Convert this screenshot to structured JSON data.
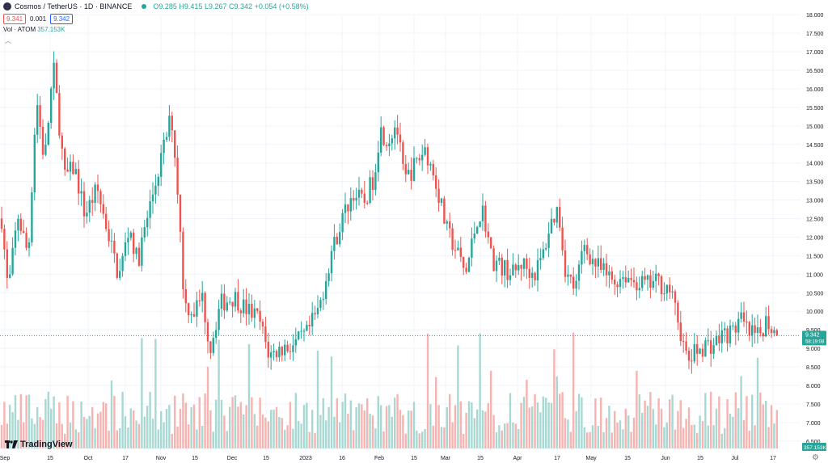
{
  "header": {
    "symbol": "Cosmos / TetherUS · 1D · BINANCE",
    "open": "O9.285",
    "high": "H9.415",
    "low": "L9.267",
    "close": "C9.342",
    "change": "+0.054 (+0.58%)",
    "sell_price": "9.341",
    "spread": "0.001",
    "buy_price": "9.342",
    "volume_label": "Vol · ATOM",
    "volume_value": "357.153K"
  },
  "last_price": {
    "price": "9.342",
    "countdown": "58:19:08",
    "volume": "357.153K"
  },
  "branding": {
    "logo_text": "TradingView"
  },
  "colors": {
    "up": "#26a69a",
    "down": "#ef5350",
    "up_vol": "#a8d8d2",
    "down_vol": "#f5b3b1",
    "grid": "#f0f3fa",
    "axis_text": "#131722"
  },
  "chart_data": {
    "type": "candlestick",
    "ylim": [
      6.3,
      18.2
    ],
    "ytick_labels": [
      "6.500",
      "7.000",
      "7.500",
      "8.000",
      "8.500",
      "9.000",
      "9.500",
      "10.000",
      "10.500",
      "11.000",
      "11.500",
      "12.000",
      "12.500",
      "13.000",
      "13.500",
      "14.000",
      "14.500",
      "15.000",
      "15.500",
      "16.000",
      "16.500",
      "17.000",
      "17.500",
      "18.000"
    ],
    "xtick_labels": [
      "Sep",
      "15",
      "Oct",
      "17",
      "Nov",
      "15",
      "Dec",
      "15",
      "2023",
      "16",
      "Feb",
      "15",
      "Mar",
      "15",
      "Apr",
      "17",
      "May",
      "15",
      "Jun",
      "15",
      "Jul",
      "17"
    ],
    "current_price": 9.342,
    "anchors": [
      [
        0,
        13.0
      ],
      [
        10,
        10.5
      ],
      [
        22,
        12.6
      ],
      [
        35,
        11.5
      ],
      [
        45,
        15.8
      ],
      [
        55,
        14.0
      ],
      [
        66,
        16.6
      ],
      [
        80,
        13.6
      ],
      [
        92,
        13.9
      ],
      [
        105,
        12.6
      ],
      [
        120,
        13.3
      ],
      [
        135,
        12.0
      ],
      [
        147,
        10.9
      ],
      [
        160,
        12.3
      ],
      [
        170,
        11.3
      ],
      [
        183,
        12.6
      ],
      [
        197,
        13.9
      ],
      [
        212,
        15.3
      ],
      [
        220,
        13.2
      ],
      [
        228,
        10.2
      ],
      [
        240,
        10.0
      ],
      [
        250,
        10.4
      ],
      [
        260,
        9.0
      ],
      [
        272,
        10.2
      ],
      [
        290,
        10.4
      ],
      [
        302,
        10.1
      ],
      [
        320,
        9.8
      ],
      [
        333,
        8.8
      ],
      [
        348,
        9.0
      ],
      [
        365,
        9.1
      ],
      [
        380,
        9.4
      ],
      [
        395,
        10.1
      ],
      [
        410,
        11.6
      ],
      [
        425,
        12.6
      ],
      [
        437,
        13.2
      ],
      [
        450,
        12.9
      ],
      [
        462,
        13.6
      ],
      [
        470,
        14.9
      ],
      [
        480,
        14.6
      ],
      [
        490,
        15.1
      ],
      [
        500,
        13.5
      ],
      [
        512,
        13.9
      ],
      [
        526,
        14.4
      ],
      [
        540,
        13.4
      ],
      [
        552,
        12.2
      ],
      [
        565,
        11.6
      ],
      [
        576,
        11.0
      ],
      [
        590,
        12.5
      ],
      [
        598,
        12.7
      ],
      [
        608,
        11.4
      ],
      [
        620,
        11.2
      ],
      [
        635,
        11.0
      ],
      [
        645,
        11.3
      ],
      [
        660,
        11.0
      ],
      [
        670,
        11.4
      ],
      [
        680,
        12.3
      ],
      [
        690,
        12.8
      ],
      [
        700,
        11.0
      ],
      [
        712,
        10.6
      ],
      [
        722,
        11.8
      ],
      [
        735,
        11.3
      ],
      [
        748,
        11.0
      ],
      [
        760,
        10.8
      ],
      [
        772,
        11.0
      ],
      [
        785,
        10.8
      ],
      [
        800,
        10.7
      ],
      [
        812,
        10.8
      ],
      [
        828,
        10.6
      ],
      [
        838,
        9.8
      ],
      [
        850,
        8.6
      ],
      [
        860,
        8.9
      ],
      [
        872,
        9.1
      ],
      [
        882,
        9.1
      ],
      [
        895,
        9.4
      ],
      [
        905,
        9.4
      ],
      [
        915,
        9.8
      ],
      [
        925,
        9.4
      ],
      [
        938,
        9.3
      ],
      [
        948,
        9.8
      ],
      [
        958,
        9.4
      ],
      [
        962,
        9.34
      ]
    ],
    "volume_range": [
      0,
      3300000
    ]
  }
}
